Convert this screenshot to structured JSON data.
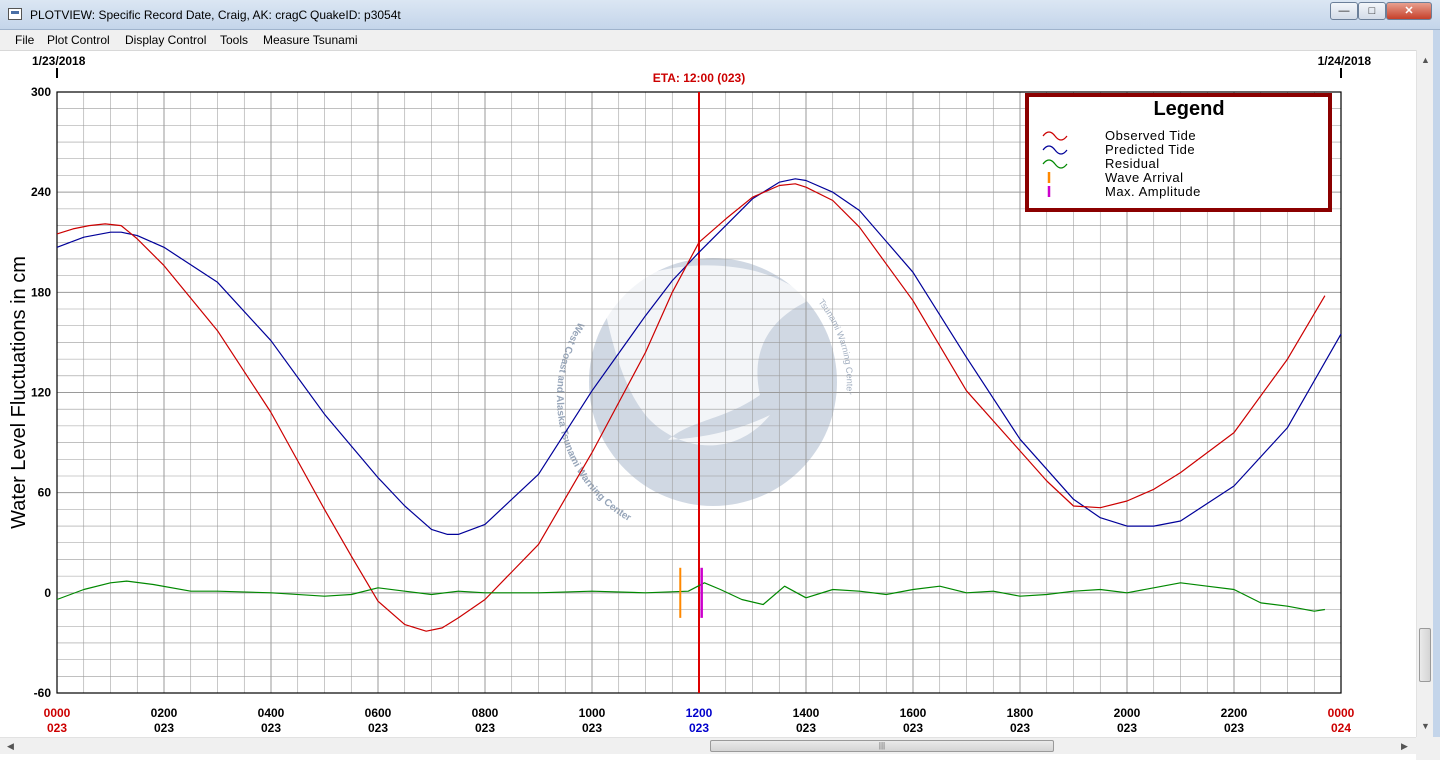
{
  "window": {
    "title": "PLOTVIEW: Specific Record Date, Craig, AK: cragC",
    "quake_id": "QuakeID: p3054t",
    "minimize_glyph": "—",
    "maximize_glyph": "□",
    "close_glyph": "✕"
  },
  "menu": [
    "File",
    "Plot Control",
    "Display Control",
    "Tools",
    "Measure Tsunami"
  ],
  "colors": {
    "observed": "#cc0000",
    "predicted": "#000099",
    "residual": "#008800",
    "wave_arrival": "#ff8800",
    "max_amplitude": "#cc00cc",
    "eta_line": "#dd0000",
    "eta_text": "#cc0000",
    "highlight_tick": "#0000cc",
    "legend_border": "#8b0000",
    "grid": "#9a9a9a",
    "logo": "#aab8cc"
  },
  "logo": {
    "arc_text_left": "West Coast and Alaska Tsunami Warning Center",
    "arc_text_right": "Tsunami Warning Center"
  },
  "chart_data": {
    "type": "line",
    "start_date": "1/23/2018",
    "end_date": "1/24/2018",
    "eta_label": "ETA: 12:00 (023)",
    "ylabel": "Water Level Fluctuations in cm",
    "ylim": [
      -60,
      300
    ],
    "y_ticks": [
      300,
      240,
      180,
      120,
      60,
      0,
      -60
    ],
    "xlim": [
      0,
      24
    ],
    "x_ticks": [
      {
        "hour": 0,
        "time": "0000",
        "day": "023",
        "style": "red"
      },
      {
        "hour": 2,
        "time": "0200",
        "day": "023",
        "style": "black"
      },
      {
        "hour": 4,
        "time": "0400",
        "day": "023",
        "style": "black"
      },
      {
        "hour": 6,
        "time": "0600",
        "day": "023",
        "style": "black"
      },
      {
        "hour": 8,
        "time": "0800",
        "day": "023",
        "style": "black"
      },
      {
        "hour": 10,
        "time": "1000",
        "day": "023",
        "style": "black"
      },
      {
        "hour": 12,
        "time": "1200",
        "day": "023",
        "style": "blue"
      },
      {
        "hour": 14,
        "time": "1400",
        "day": "023",
        "style": "black"
      },
      {
        "hour": 16,
        "time": "1600",
        "day": "023",
        "style": "black"
      },
      {
        "hour": 18,
        "time": "1800",
        "day": "023",
        "style": "black"
      },
      {
        "hour": 20,
        "time": "2000",
        "day": "023",
        "style": "black"
      },
      {
        "hour": 22,
        "time": "2200",
        "day": "023",
        "style": "black"
      },
      {
        "hour": 24,
        "time": "0000",
        "day": "024",
        "style": "red"
      }
    ],
    "eta_hour": 12,
    "wave_arrival": {
      "hour": 11.65,
      "range": [
        -15,
        15
      ]
    },
    "max_amplitude": {
      "hour": 12.05,
      "range": [
        -15,
        15
      ]
    },
    "grid": true,
    "legend": {
      "title": "Legend",
      "position": "top-right",
      "entries": [
        {
          "label": "Observed Tide",
          "symbol": "wave",
          "color_key": "observed"
        },
        {
          "label": "Predicted Tide",
          "symbol": "wave",
          "color_key": "predicted"
        },
        {
          "label": "Residual",
          "symbol": "wave",
          "color_key": "residual"
        },
        {
          "label": "Wave Arrival",
          "symbol": "bar",
          "color_key": "wave_arrival"
        },
        {
          "label": "Max. Amplitude",
          "symbol": "bar",
          "color_key": "max_amplitude"
        }
      ]
    },
    "series": [
      {
        "name": "Predicted Tide",
        "x": [
          0,
          0.5,
          1,
          1.2,
          1.5,
          2,
          3,
          4,
          5,
          6,
          6.5,
          7,
          7.3,
          7.5,
          8,
          9,
          10,
          11,
          11.5,
          12,
          13,
          13.5,
          13.8,
          14,
          14.5,
          15,
          16,
          17,
          18,
          19,
          19.5,
          20,
          20.3,
          20.5,
          21,
          22,
          23,
          24
        ],
        "values": [
          207,
          213,
          216,
          216,
          214,
          207,
          186,
          151,
          107,
          69,
          52,
          38,
          35,
          35,
          41,
          71,
          121,
          166,
          187,
          204,
          236,
          246,
          248,
          247,
          240,
          229,
          192,
          141,
          92,
          56,
          45,
          40,
          40,
          40,
          43,
          64,
          99,
          155
        ]
      },
      {
        "name": "Observed Tide",
        "x": [
          0,
          0.3,
          0.6,
          0.9,
          1.2,
          1.5,
          2,
          3,
          4,
          5,
          5.5,
          6,
          6.5,
          6.9,
          7.2,
          7.5,
          8,
          9,
          10,
          11,
          11.5,
          12,
          12.5,
          13,
          13.5,
          13.8,
          14,
          14.5,
          15,
          16,
          17,
          18,
          18.5,
          19,
          19.5,
          20,
          20.5,
          21,
          22,
          23,
          23.7
        ],
        "values": [
          215,
          218,
          220,
          221,
          220,
          212,
          196,
          157,
          108,
          50,
          22,
          -5,
          -19,
          -23,
          -21,
          -15,
          -4,
          29,
          84,
          144,
          180,
          210,
          224,
          237,
          244,
          245,
          243,
          235,
          219,
          175,
          121,
          85,
          67,
          52,
          51,
          55,
          62,
          72,
          96,
          140,
          178
        ]
      },
      {
        "name": "Residual",
        "x": [
          0,
          0.5,
          1,
          1.3,
          1.8,
          2.5,
          3,
          4,
          5,
          5.5,
          6,
          6.5,
          7,
          7.5,
          8,
          9,
          10,
          11,
          11.8,
          12.1,
          12.4,
          12.8,
          13.2,
          13.6,
          14,
          14.5,
          15,
          15.5,
          16,
          16.5,
          17,
          17.5,
          18,
          18.5,
          19,
          19.5,
          20,
          20.5,
          21,
          21.5,
          22,
          22.5,
          23,
          23.5,
          23.7
        ],
        "values": [
          -4,
          2,
          6,
          7,
          5,
          1,
          1,
          0,
          -2,
          -1,
          3,
          1,
          -1,
          1,
          0,
          0,
          1,
          0,
          1,
          6,
          2,
          -4,
          -7,
          4,
          -3,
          2,
          1,
          -1,
          2,
          4,
          0,
          1,
          -2,
          -1,
          1,
          2,
          0,
          3,
          6,
          4,
          2,
          -6,
          -8,
          -11,
          -10
        ]
      }
    ]
  }
}
